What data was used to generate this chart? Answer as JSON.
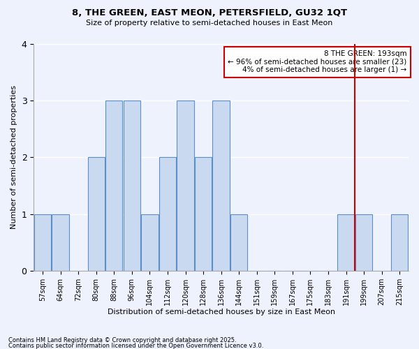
{
  "title": "8, THE GREEN, EAST MEON, PETERSFIELD, GU32 1QT",
  "subtitle": "Size of property relative to semi-detached houses in East Meon",
  "xlabel": "Distribution of semi-detached houses by size in East Meon",
  "ylabel": "Number of semi-detached properties",
  "footer1": "Contains HM Land Registry data © Crown copyright and database right 2025.",
  "footer2": "Contains public sector information licensed under the Open Government Licence v3.0.",
  "categories": [
    "57sqm",
    "64sqm",
    "72sqm",
    "80sqm",
    "88sqm",
    "96sqm",
    "104sqm",
    "112sqm",
    "120sqm",
    "128sqm",
    "136sqm",
    "144sqm",
    "151sqm",
    "159sqm",
    "167sqm",
    "175sqm",
    "183sqm",
    "191sqm",
    "199sqm",
    "207sqm",
    "215sqm"
  ],
  "values": [
    1,
    1,
    0,
    2,
    3,
    3,
    1,
    2,
    3,
    2,
    3,
    1,
    0,
    0,
    0,
    0,
    0,
    1,
    1,
    0,
    1
  ],
  "bar_color": "#c9daf0",
  "bar_edge_color": "#5b8fcb",
  "background_color": "#eef2fc",
  "grid_color": "#ffffff",
  "property_line_x": 17.5,
  "property_line_color": "#cc0000",
  "annotation_line1": "8 THE GREEN: 193sqm",
  "annotation_line2": "← 96% of semi-detached houses are smaller (23)",
  "annotation_line3": "4% of semi-detached houses are larger (1) →",
  "annotation_box_color": "#cc0000",
  "ylim": [
    0,
    4
  ],
  "yticks": [
    0,
    1,
    2,
    3,
    4
  ]
}
